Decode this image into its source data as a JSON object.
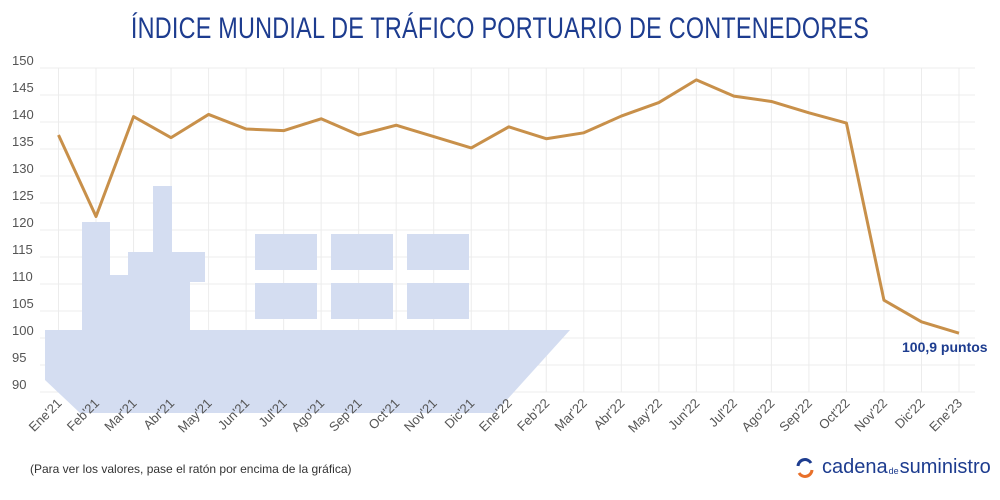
{
  "title": "ÍNDICE MUNDIAL DE TRÁFICO PORTUARIO DE CONTENEDORES",
  "note": "(Para ver los valores, pase el ratón por encima de la gráfica)",
  "logo": {
    "part1": "cadena",
    "part2": "de",
    "part3": "suministro"
  },
  "colors": {
    "line": "#c8904a",
    "title": "#1d3c8f",
    "ship": "#d4ddf1",
    "annotation": "#1d3c8f"
  },
  "chart_data": {
    "type": "line",
    "title": "ÍNDICE MUNDIAL DE TRÁFICO PORTUARIO DE CONTENEDORES",
    "xlabel": "",
    "ylabel": "",
    "ylim": [
      90,
      150
    ],
    "yticks": [
      150,
      145,
      140,
      135,
      130,
      125,
      120,
      115,
      110,
      105,
      100,
      95,
      90
    ],
    "grid": true,
    "categories": [
      "Ene'21",
      "Feb'21",
      "Mar'21",
      "Abr'21",
      "May'21",
      "Jun'21",
      "Jul'21",
      "Ago'21",
      "Sep'21",
      "Oct'21",
      "Nov'21",
      "Dic'21",
      "Ene'22",
      "Feb'22",
      "Mar'22",
      "Abr'22",
      "May'22",
      "Jun'22",
      "Jul'22",
      "Ago'22",
      "Sep'22",
      "Oct'22",
      "Nov'22",
      "Dic'22",
      "Ene'23"
    ],
    "values": [
      137.6,
      122.5,
      141.0,
      137.1,
      141.4,
      138.7,
      138.4,
      140.6,
      137.6,
      139.4,
      137.3,
      135.2,
      139.1,
      136.9,
      138.0,
      141.1,
      143.6,
      147.8,
      144.8,
      143.8,
      141.7,
      139.8,
      107.0,
      103.0,
      100.9
    ],
    "annotation": "100,9 puntos"
  }
}
